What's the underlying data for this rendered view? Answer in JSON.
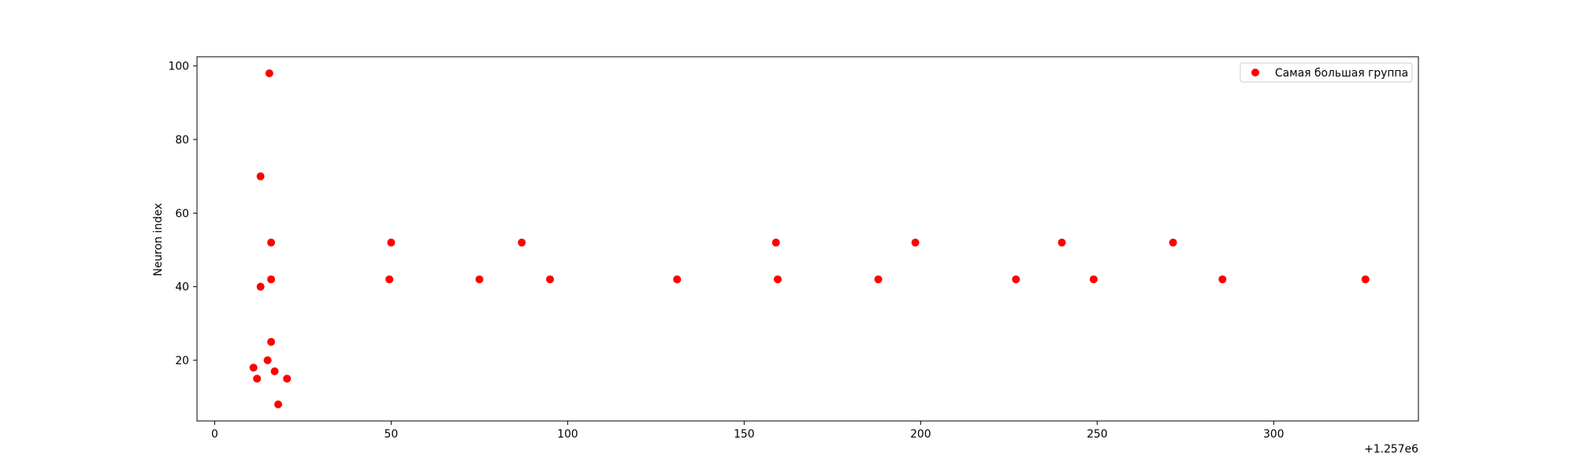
{
  "chart_data": {
    "type": "scatter",
    "xlabel": "",
    "ylabel": "Neuron index",
    "x_offset_label": "+1.257e6",
    "x_offset": 1257000,
    "xlim": [
      -5,
      341
    ],
    "ylim": [
      3.5,
      102.5
    ],
    "x_ticks": [
      {
        "value": 0,
        "label": "0"
      },
      {
        "value": 50,
        "label": "50"
      },
      {
        "value": 100,
        "label": "100"
      },
      {
        "value": 150,
        "label": "150"
      },
      {
        "value": 200,
        "label": "200"
      },
      {
        "value": 250,
        "label": "250"
      },
      {
        "value": 300,
        "label": "300"
      }
    ],
    "y_ticks": [
      {
        "value": 20,
        "label": "20"
      },
      {
        "value": 40,
        "label": "40"
      },
      {
        "value": 60,
        "label": "60"
      },
      {
        "value": 80,
        "label": "80"
      },
      {
        "value": 100,
        "label": "100"
      }
    ],
    "grid": false,
    "legend": {
      "position": "top-right"
    },
    "series": [
      {
        "name": "Самая большая группа",
        "color": "#ff0000",
        "points": [
          {
            "x": 1257011,
            "y": 18
          },
          {
            "x": 1257012,
            "y": 15
          },
          {
            "x": 1257013,
            "y": 70
          },
          {
            "x": 1257013,
            "y": 40
          },
          {
            "x": 1257015,
            "y": 20
          },
          {
            "x": 1257015.5,
            "y": 98
          },
          {
            "x": 1257016,
            "y": 52
          },
          {
            "x": 1257016,
            "y": 42
          },
          {
            "x": 1257016,
            "y": 25
          },
          {
            "x": 1257017,
            "y": 17
          },
          {
            "x": 1257018,
            "y": 8
          },
          {
            "x": 1257020.5,
            "y": 15
          },
          {
            "x": 1257049.5,
            "y": 42
          },
          {
            "x": 1257050,
            "y": 52
          },
          {
            "x": 1257075,
            "y": 42
          },
          {
            "x": 1257087,
            "y": 52
          },
          {
            "x": 1257095,
            "y": 42
          },
          {
            "x": 1257131,
            "y": 42
          },
          {
            "x": 1257159,
            "y": 52
          },
          {
            "x": 1257159.5,
            "y": 42
          },
          {
            "x": 1257188,
            "y": 42
          },
          {
            "x": 1257198.5,
            "y": 52
          },
          {
            "x": 1257227,
            "y": 42
          },
          {
            "x": 1257240,
            "y": 52
          },
          {
            "x": 1257249,
            "y": 42
          },
          {
            "x": 1257271.5,
            "y": 52
          },
          {
            "x": 1257285.5,
            "y": 42
          },
          {
            "x": 1257326,
            "y": 42
          }
        ]
      }
    ]
  }
}
